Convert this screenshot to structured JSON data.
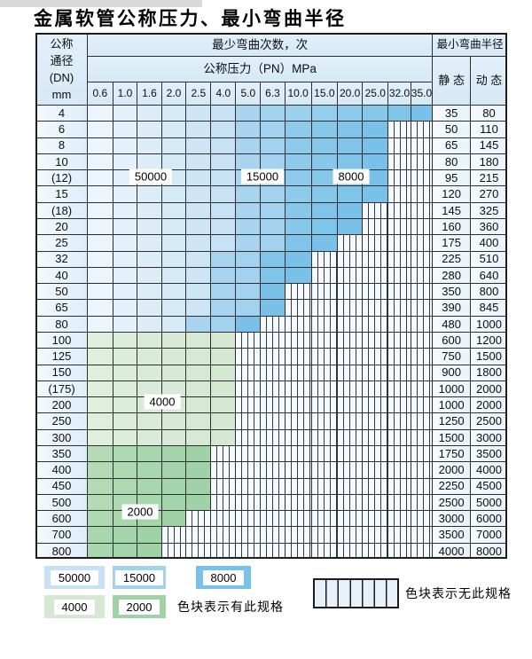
{
  "title": "金属软管公称压力、最小弯曲半径",
  "header": {
    "dn_lines": [
      "公称",
      "通径",
      "(DN)",
      "mm"
    ],
    "cycles_label": "最少弯曲次数，次",
    "pressure_label": "公称压力（PN）MPa",
    "radius_label": "最小弯曲半径",
    "static_label": "静 态",
    "dynamic_label": "动 态",
    "pressures": [
      "0.6",
      "1.0",
      "1.6",
      "2.0",
      "2.5",
      "4.0",
      "5.0",
      "6.3",
      "10.0",
      "15.0",
      "20.0",
      "25.0",
      "32.0",
      "35.0"
    ]
  },
  "zone_colors": {
    "50000": "#c6e2f4",
    "15000": "#a3d2ee",
    "8000": "#79c1e8",
    "4000": "#d4e8d2",
    "2000": "#9fd2a4"
  },
  "cycle_overlay_labels": [
    "50000",
    "15000",
    "8000",
    "4000",
    "2000"
  ],
  "rows": [
    {
      "dn": "4",
      "static": "35",
      "dynamic": "80",
      "bands": [
        [
          0,
          5,
          "50000"
        ],
        [
          6,
          7,
          "15000"
        ],
        [
          8,
          13,
          "8000"
        ]
      ],
      "hatch_from": null
    },
    {
      "dn": "6",
      "static": "50",
      "dynamic": "110",
      "bands": [
        [
          0,
          5,
          "50000"
        ],
        [
          6,
          7,
          "15000"
        ],
        [
          8,
          11,
          "8000"
        ]
      ],
      "hatch_from": 12
    },
    {
      "dn": "8",
      "static": "65",
      "dynamic": "145",
      "bands": [
        [
          0,
          5,
          "50000"
        ],
        [
          6,
          7,
          "15000"
        ],
        [
          8,
          11,
          "8000"
        ]
      ],
      "hatch_from": 12
    },
    {
      "dn": "10",
      "static": "80",
      "dynamic": "180",
      "bands": [
        [
          0,
          5,
          "50000"
        ],
        [
          6,
          7,
          "15000"
        ],
        [
          8,
          11,
          "8000"
        ]
      ],
      "hatch_from": 12
    },
    {
      "dn": "(12)",
      "static": "95",
      "dynamic": "215",
      "bands": [
        [
          0,
          5,
          "50000"
        ],
        [
          6,
          7,
          "15000"
        ],
        [
          8,
          11,
          "8000"
        ]
      ],
      "hatch_from": 12
    },
    {
      "dn": "15",
      "static": "120",
      "dynamic": "270",
      "bands": [
        [
          0,
          5,
          "50000"
        ],
        [
          6,
          7,
          "15000"
        ],
        [
          8,
          11,
          "8000"
        ]
      ],
      "hatch_from": 12
    },
    {
      "dn": "(18)",
      "static": "145",
      "dynamic": "325",
      "bands": [
        [
          0,
          5,
          "50000"
        ],
        [
          6,
          7,
          "15000"
        ],
        [
          8,
          10,
          "8000"
        ]
      ],
      "hatch_from": 11
    },
    {
      "dn": "20",
      "static": "160",
      "dynamic": "360",
      "bands": [
        [
          0,
          5,
          "50000"
        ],
        [
          6,
          7,
          "15000"
        ],
        [
          8,
          10,
          "8000"
        ]
      ],
      "hatch_from": 11
    },
    {
      "dn": "25",
      "static": "175",
      "dynamic": "400",
      "bands": [
        [
          0,
          5,
          "50000"
        ],
        [
          6,
          7,
          "15000"
        ],
        [
          8,
          9,
          "8000"
        ]
      ],
      "hatch_from": 10
    },
    {
      "dn": "32",
      "static": "225",
      "dynamic": "510",
      "bands": [
        [
          0,
          4,
          "50000"
        ],
        [
          5,
          6,
          "15000"
        ],
        [
          7,
          8,
          "8000"
        ]
      ],
      "hatch_from": 9
    },
    {
      "dn": "40",
      "static": "280",
      "dynamic": "640",
      "bands": [
        [
          0,
          4,
          "50000"
        ],
        [
          5,
          6,
          "15000"
        ],
        [
          7,
          8,
          "8000"
        ]
      ],
      "hatch_from": 9
    },
    {
      "dn": "50",
      "static": "350",
      "dynamic": "800",
      "bands": [
        [
          0,
          4,
          "50000"
        ],
        [
          5,
          6,
          "15000"
        ],
        [
          7,
          7,
          "8000"
        ]
      ],
      "hatch_from": 8
    },
    {
      "dn": "65",
      "static": "390",
      "dynamic": "845",
      "bands": [
        [
          0,
          4,
          "50000"
        ],
        [
          5,
          6,
          "15000"
        ],
        [
          7,
          7,
          "8000"
        ]
      ],
      "hatch_from": 8
    },
    {
      "dn": "80",
      "static": "480",
      "dynamic": "1000",
      "bands": [
        [
          0,
          3,
          "50000"
        ],
        [
          4,
          5,
          "15000"
        ],
        [
          6,
          6,
          "8000"
        ]
      ],
      "hatch_from": 7
    },
    {
      "dn": "100",
      "static": "600",
      "dynamic": "1200",
      "bands": [
        [
          0,
          5,
          "4000"
        ]
      ],
      "hatch_from": 6
    },
    {
      "dn": "125",
      "static": "750",
      "dynamic": "1500",
      "bands": [
        [
          0,
          5,
          "4000"
        ]
      ],
      "hatch_from": 6
    },
    {
      "dn": "150",
      "static": "900",
      "dynamic": "1800",
      "bands": [
        [
          0,
          5,
          "4000"
        ]
      ],
      "hatch_from": 6
    },
    {
      "dn": "(175)",
      "static": "1000",
      "dynamic": "2000",
      "bands": [
        [
          0,
          5,
          "4000"
        ]
      ],
      "hatch_from": 6
    },
    {
      "dn": "200",
      "static": "1000",
      "dynamic": "2000",
      "bands": [
        [
          0,
          5,
          "4000"
        ]
      ],
      "hatch_from": 6
    },
    {
      "dn": "250",
      "static": "1250",
      "dynamic": "2500",
      "bands": [
        [
          0,
          5,
          "4000"
        ]
      ],
      "hatch_from": 6
    },
    {
      "dn": "300",
      "static": "1500",
      "dynamic": "3000",
      "bands": [
        [
          0,
          5,
          "4000"
        ]
      ],
      "hatch_from": 6
    },
    {
      "dn": "350",
      "static": "1750",
      "dynamic": "3500",
      "bands": [
        [
          0,
          4,
          "2000"
        ]
      ],
      "hatch_from": 5
    },
    {
      "dn": "400",
      "static": "2000",
      "dynamic": "4000",
      "bands": [
        [
          0,
          4,
          "2000"
        ]
      ],
      "hatch_from": 5
    },
    {
      "dn": "450",
      "static": "2250",
      "dynamic": "4500",
      "bands": [
        [
          0,
          4,
          "2000"
        ]
      ],
      "hatch_from": 5
    },
    {
      "dn": "500",
      "static": "2500",
      "dynamic": "5000",
      "bands": [
        [
          0,
          4,
          "2000"
        ]
      ],
      "hatch_from": 5
    },
    {
      "dn": "600",
      "static": "3000",
      "dynamic": "6000",
      "bands": [
        [
          0,
          3,
          "2000"
        ]
      ],
      "hatch_from": 4
    },
    {
      "dn": "700",
      "static": "3500",
      "dynamic": "7000",
      "bands": [
        [
          0,
          2,
          "2000"
        ]
      ],
      "hatch_from": 3
    },
    {
      "dn": "800",
      "static": "4000",
      "dynamic": "8000",
      "bands": [
        [
          0,
          2,
          "2000"
        ]
      ],
      "hatch_from": 3
    }
  ],
  "legend": {
    "swatches": [
      "50000",
      "15000",
      "8000",
      "4000",
      "2000"
    ],
    "has_spec_text": "色块表示有此规格",
    "no_spec_text": "色块表示无此规格"
  }
}
